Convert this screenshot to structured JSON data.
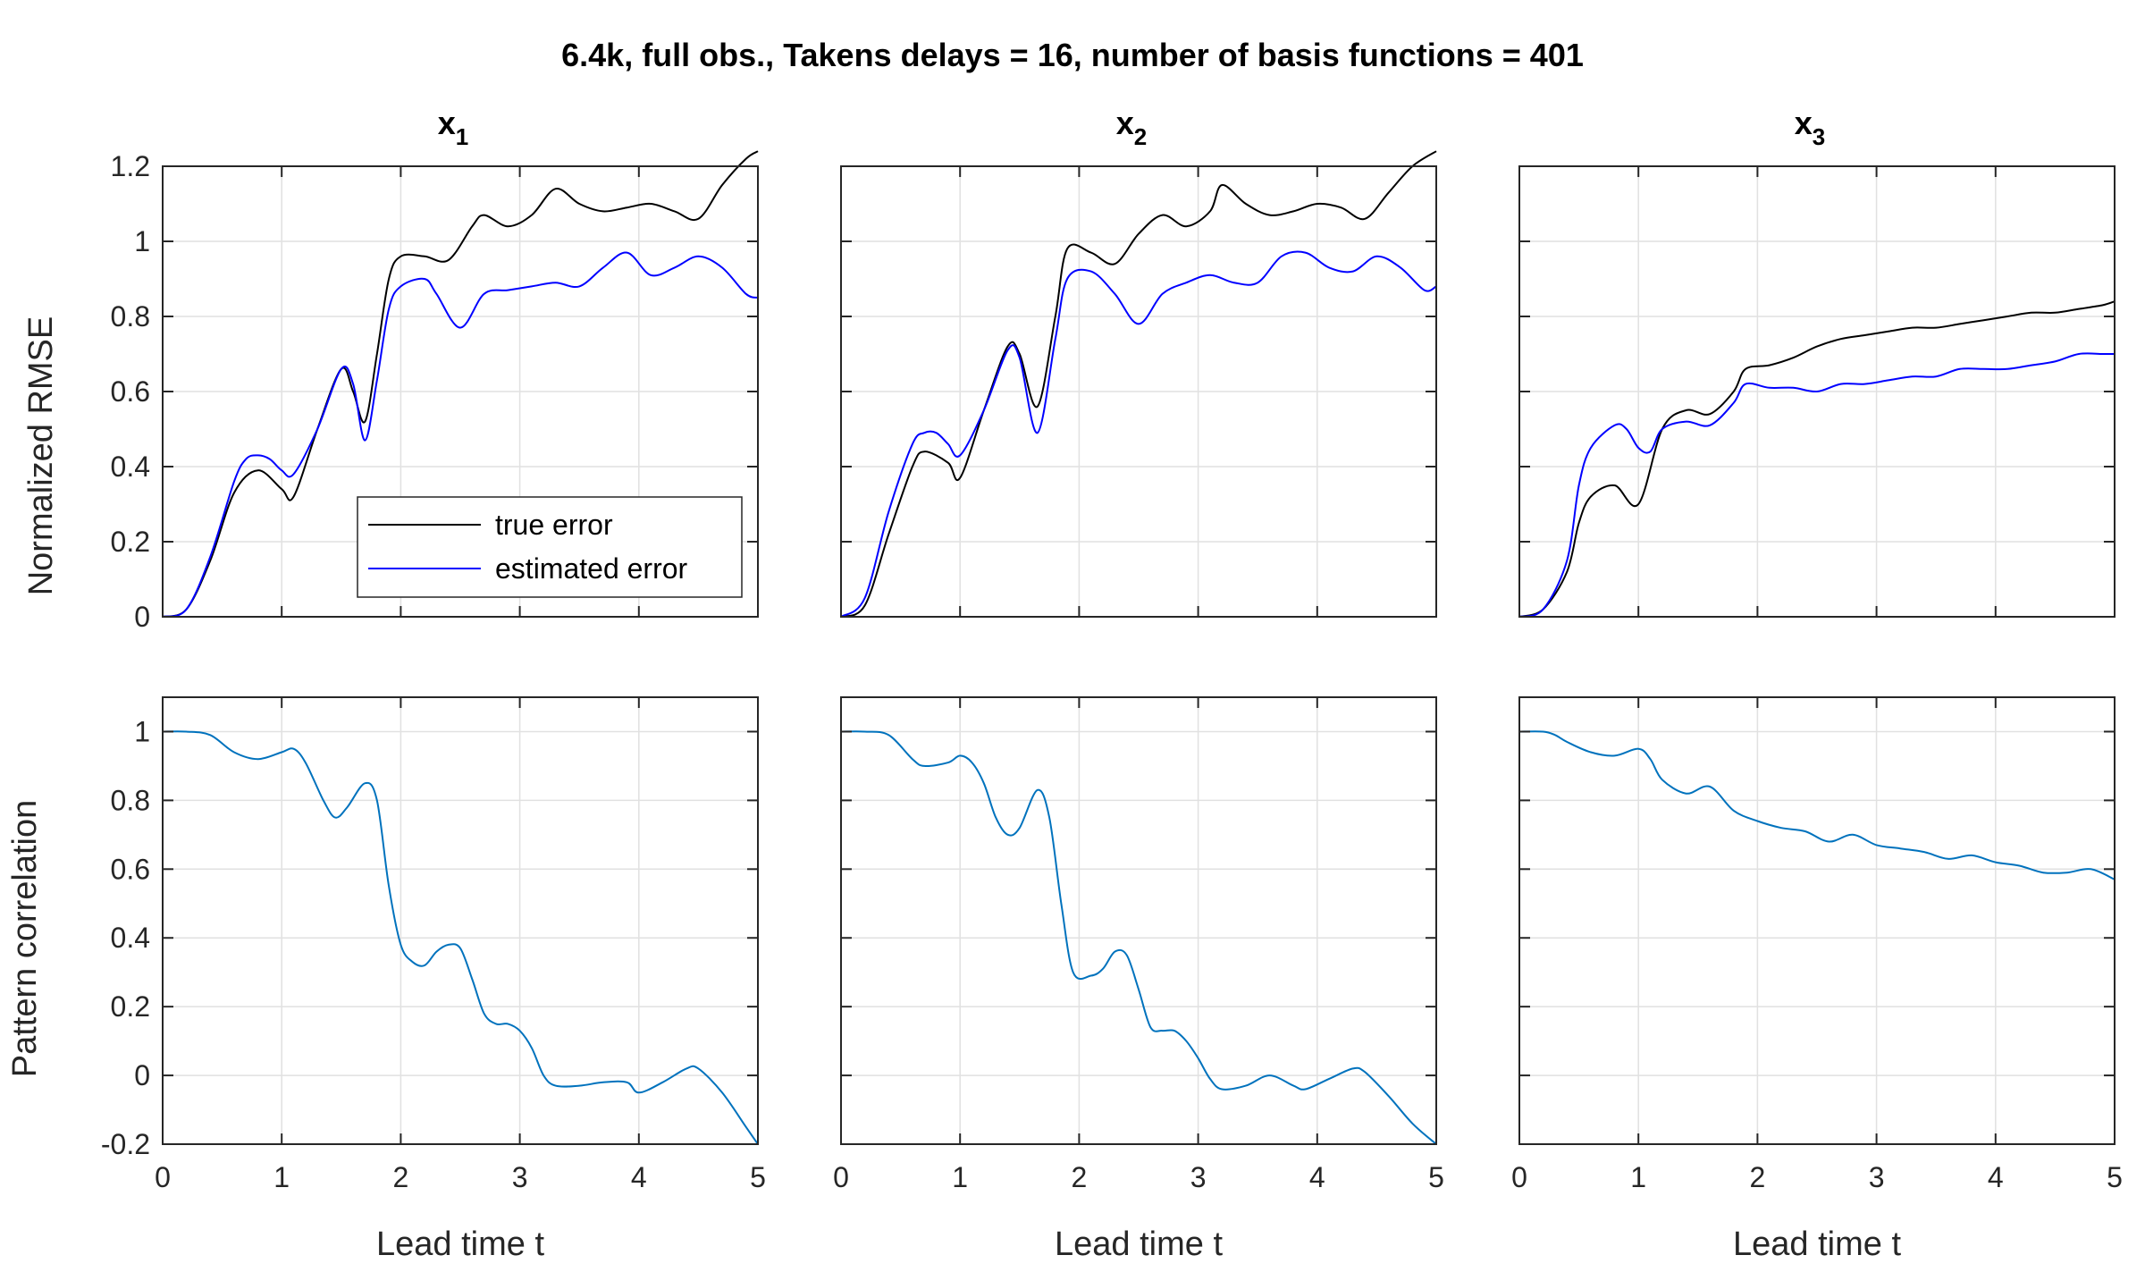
{
  "suptitle": "6.4k, full obs., Takens delays = 16, number of basis functions = 401",
  "legend": {
    "entries": [
      "true error",
      "estimated error"
    ],
    "position": "lower-right of top-left panel"
  },
  "colors": {
    "true_error": "#000000",
    "estimated_error": "#0000ff",
    "pattern_correlation": "#0072bd"
  },
  "xlabel": "Lead time t",
  "rows": [
    {
      "ylabel": "Normalized RMSE",
      "ylim": [
        0,
        1.2
      ],
      "yticks": [
        "0",
        "0.2",
        "0.4",
        "0.6",
        "0.8",
        "1",
        "1.2"
      ]
    },
    {
      "ylabel": "Pattern correlation",
      "ylim": [
        -0.2,
        1.1
      ],
      "yticks": [
        "-0.2",
        "0",
        "0.2",
        "0.4",
        "0.6",
        "0.8",
        "1"
      ]
    }
  ],
  "xticks": [
    "0",
    "1",
    "2",
    "3",
    "4",
    "5"
  ],
  "chart_data": [
    {
      "type": "line",
      "panel": "rmse-x1",
      "title": "x",
      "title_sub": "1",
      "xlim": [
        0,
        5
      ],
      "ylim": [
        0,
        1.2
      ],
      "grid": true,
      "series": [
        {
          "name": "true error",
          "color": "#000000",
          "x": [
            0,
            0.2,
            0.4,
            0.6,
            0.8,
            1.0,
            1.1,
            1.3,
            1.5,
            1.6,
            1.7,
            1.8,
            1.9,
            2.0,
            2.2,
            2.4,
            2.6,
            2.7,
            2.9,
            3.1,
            3.3,
            3.5,
            3.7,
            3.9,
            4.1,
            4.3,
            4.5,
            4.7,
            4.9,
            5.0
          ],
          "y": [
            0,
            0.02,
            0.15,
            0.33,
            0.39,
            0.34,
            0.32,
            0.5,
            0.66,
            0.6,
            0.52,
            0.7,
            0.9,
            0.96,
            0.96,
            0.95,
            1.04,
            1.07,
            1.04,
            1.07,
            1.14,
            1.1,
            1.08,
            1.09,
            1.1,
            1.08,
            1.06,
            1.15,
            1.22,
            1.24
          ]
        },
        {
          "name": "estimated error",
          "color": "#0000ff",
          "x": [
            0,
            0.2,
            0.4,
            0.6,
            0.7,
            0.8,
            0.9,
            1.0,
            1.1,
            1.3,
            1.5,
            1.6,
            1.7,
            1.8,
            1.9,
            2.0,
            2.2,
            2.3,
            2.5,
            2.7,
            2.9,
            3.1,
            3.3,
            3.5,
            3.7,
            3.9,
            4.1,
            4.3,
            4.5,
            4.7,
            4.9,
            5.0
          ],
          "y": [
            0,
            0.02,
            0.16,
            0.36,
            0.42,
            0.43,
            0.42,
            0.39,
            0.38,
            0.5,
            0.66,
            0.62,
            0.47,
            0.63,
            0.82,
            0.88,
            0.9,
            0.86,
            0.77,
            0.86,
            0.87,
            0.88,
            0.89,
            0.88,
            0.93,
            0.97,
            0.91,
            0.93,
            0.96,
            0.93,
            0.86,
            0.85
          ]
        }
      ]
    },
    {
      "type": "line",
      "panel": "rmse-x2",
      "title": "x",
      "title_sub": "2",
      "xlim": [
        0,
        5
      ],
      "ylim": [
        0,
        1.2
      ],
      "grid": true,
      "series": [
        {
          "name": "true error",
          "color": "#000000",
          "x": [
            0,
            0.2,
            0.4,
            0.6,
            0.7,
            0.9,
            1.0,
            1.2,
            1.4,
            1.5,
            1.65,
            1.8,
            1.9,
            2.1,
            2.3,
            2.5,
            2.7,
            2.9,
            3.1,
            3.2,
            3.4,
            3.6,
            3.8,
            4.0,
            4.2,
            4.4,
            4.6,
            4.8,
            5.0
          ],
          "y": [
            0,
            0.03,
            0.22,
            0.4,
            0.44,
            0.41,
            0.37,
            0.55,
            0.72,
            0.7,
            0.56,
            0.8,
            0.98,
            0.97,
            0.94,
            1.02,
            1.07,
            1.04,
            1.08,
            1.15,
            1.1,
            1.07,
            1.08,
            1.1,
            1.09,
            1.06,
            1.13,
            1.2,
            1.24
          ]
        },
        {
          "name": "estimated error",
          "color": "#0000ff",
          "x": [
            0,
            0.2,
            0.4,
            0.6,
            0.7,
            0.8,
            0.9,
            1.0,
            1.2,
            1.4,
            1.5,
            1.65,
            1.8,
            1.9,
            2.1,
            2.3,
            2.5,
            2.7,
            2.9,
            3.1,
            3.3,
            3.5,
            3.7,
            3.9,
            4.1,
            4.3,
            4.5,
            4.7,
            4.9,
            5.0
          ],
          "y": [
            0,
            0.05,
            0.28,
            0.46,
            0.49,
            0.49,
            0.46,
            0.43,
            0.55,
            0.71,
            0.69,
            0.49,
            0.74,
            0.9,
            0.92,
            0.86,
            0.78,
            0.86,
            0.89,
            0.91,
            0.89,
            0.89,
            0.96,
            0.97,
            0.93,
            0.92,
            0.96,
            0.93,
            0.87,
            0.88
          ]
        }
      ]
    },
    {
      "type": "line",
      "panel": "rmse-x3",
      "title": "x",
      "title_sub": "3",
      "xlim": [
        0,
        5
      ],
      "ylim": [
        0,
        1.2
      ],
      "grid": true,
      "series": [
        {
          "name": "true error",
          "color": "#000000",
          "x": [
            0,
            0.2,
            0.4,
            0.5,
            0.6,
            0.8,
            1.0,
            1.2,
            1.4,
            1.6,
            1.8,
            1.9,
            2.1,
            2.3,
            2.5,
            2.7,
            2.9,
            3.1,
            3.3,
            3.5,
            3.7,
            3.9,
            4.1,
            4.3,
            4.5,
            4.7,
            4.9,
            5.0
          ],
          "y": [
            0,
            0.02,
            0.12,
            0.25,
            0.32,
            0.35,
            0.3,
            0.5,
            0.55,
            0.54,
            0.6,
            0.66,
            0.67,
            0.69,
            0.72,
            0.74,
            0.75,
            0.76,
            0.77,
            0.77,
            0.78,
            0.79,
            0.8,
            0.81,
            0.81,
            0.82,
            0.83,
            0.84
          ]
        },
        {
          "name": "estimated error",
          "color": "#0000ff",
          "x": [
            0,
            0.2,
            0.4,
            0.5,
            0.6,
            0.8,
            0.9,
            1.0,
            1.1,
            1.2,
            1.4,
            1.6,
            1.8,
            1.9,
            2.1,
            2.3,
            2.5,
            2.7,
            2.9,
            3.1,
            3.3,
            3.5,
            3.7,
            3.9,
            4.1,
            4.3,
            4.5,
            4.7,
            4.9,
            5.0
          ],
          "y": [
            0,
            0.02,
            0.15,
            0.35,
            0.45,
            0.51,
            0.5,
            0.45,
            0.44,
            0.5,
            0.52,
            0.51,
            0.57,
            0.62,
            0.61,
            0.61,
            0.6,
            0.62,
            0.62,
            0.63,
            0.64,
            0.64,
            0.66,
            0.66,
            0.66,
            0.67,
            0.68,
            0.7,
            0.7,
            0.7
          ]
        }
      ]
    },
    {
      "type": "line",
      "panel": "corr-x1",
      "xlim": [
        0,
        5
      ],
      "ylim": [
        -0.2,
        1.1
      ],
      "grid": true,
      "series": [
        {
          "name": "",
          "color": "#0072bd",
          "x": [
            0,
            0.2,
            0.4,
            0.6,
            0.8,
            1.0,
            1.1,
            1.2,
            1.35,
            1.45,
            1.55,
            1.7,
            1.8,
            1.9,
            2.0,
            2.1,
            2.2,
            2.3,
            2.4,
            2.5,
            2.6,
            2.7,
            2.8,
            2.9,
            3.0,
            3.1,
            3.2,
            3.3,
            3.5,
            3.7,
            3.9,
            4.0,
            4.2,
            4.4,
            4.5,
            4.7,
            4.9,
            5.0
          ],
          "y": [
            1,
            1,
            0.99,
            0.94,
            0.92,
            0.94,
            0.95,
            0.91,
            0.8,
            0.75,
            0.78,
            0.85,
            0.8,
            0.55,
            0.38,
            0.33,
            0.32,
            0.36,
            0.38,
            0.37,
            0.28,
            0.18,
            0.15,
            0.15,
            0.13,
            0.08,
            0.0,
            -0.03,
            -0.03,
            -0.02,
            -0.02,
            -0.05,
            -0.02,
            0.02,
            0.02,
            -0.05,
            -0.15,
            -0.2
          ]
        }
      ]
    },
    {
      "type": "line",
      "panel": "corr-x2",
      "xlim": [
        0,
        5
      ],
      "ylim": [
        -0.2,
        1.1
      ],
      "grid": true,
      "series": [
        {
          "name": "",
          "color": "#0072bd",
          "x": [
            0,
            0.2,
            0.4,
            0.6,
            0.7,
            0.9,
            1.0,
            1.1,
            1.2,
            1.3,
            1.4,
            1.5,
            1.65,
            1.75,
            1.85,
            1.95,
            2.1,
            2.2,
            2.3,
            2.4,
            2.5,
            2.6,
            2.7,
            2.8,
            2.9,
            3.0,
            3.1,
            3.2,
            3.4,
            3.6,
            3.8,
            3.9,
            4.1,
            4.3,
            4.4,
            4.6,
            4.8,
            5.0
          ],
          "y": [
            1,
            1,
            0.99,
            0.92,
            0.9,
            0.91,
            0.93,
            0.91,
            0.85,
            0.75,
            0.7,
            0.72,
            0.83,
            0.75,
            0.5,
            0.3,
            0.29,
            0.31,
            0.36,
            0.35,
            0.25,
            0.14,
            0.13,
            0.13,
            0.1,
            0.05,
            -0.01,
            -0.04,
            -0.03,
            0.0,
            -0.03,
            -0.04,
            -0.01,
            0.02,
            0.01,
            -0.06,
            -0.14,
            -0.21
          ]
        }
      ]
    },
    {
      "type": "line",
      "panel": "corr-x3",
      "xlim": [
        0,
        5
      ],
      "ylim": [
        -0.2,
        1.1
      ],
      "grid": true,
      "series": [
        {
          "name": "",
          "color": "#0072bd",
          "x": [
            0,
            0.2,
            0.3,
            0.4,
            0.6,
            0.8,
            1.0,
            1.1,
            1.2,
            1.4,
            1.6,
            1.8,
            2.0,
            2.2,
            2.4,
            2.6,
            2.8,
            3.0,
            3.2,
            3.4,
            3.6,
            3.8,
            4.0,
            4.2,
            4.4,
            4.6,
            4.8,
            5.0
          ],
          "y": [
            1,
            1,
            0.99,
            0.97,
            0.94,
            0.93,
            0.95,
            0.92,
            0.86,
            0.82,
            0.84,
            0.77,
            0.74,
            0.72,
            0.71,
            0.68,
            0.7,
            0.67,
            0.66,
            0.65,
            0.63,
            0.64,
            0.62,
            0.61,
            0.59,
            0.59,
            0.6,
            0.57
          ]
        }
      ]
    }
  ]
}
